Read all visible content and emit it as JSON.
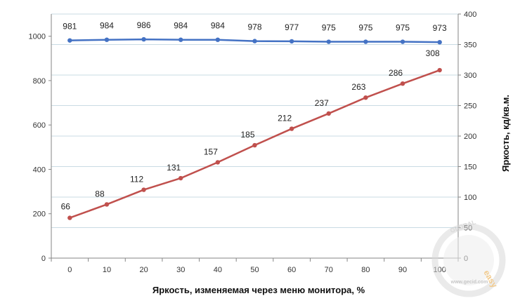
{
  "chart_data": {
    "type": "line",
    "x": [
      0,
      10,
      20,
      30,
      40,
      50,
      60,
      70,
      80,
      90,
      100
    ],
    "series": [
      {
        "values": [
          981,
          984,
          986,
          984,
          984,
          978,
          977,
          975,
          975,
          975,
          973
        ],
        "axis": "left",
        "color": "#4472C4"
      },
      {
        "values": [
          66,
          88,
          112,
          131,
          157,
          185,
          212,
          237,
          263,
          286,
          308
        ],
        "axis": "right",
        "color": "#C0504D"
      }
    ],
    "xlabel": "Яркость, изменяемая через меню монитора, %",
    "ylabel": "",
    "y2label": "Яркость, кд/кв.м.",
    "ylim": [
      0,
      1100
    ],
    "y2lim": [
      0,
      400
    ],
    "yticks": [
      0,
      200,
      400,
      600,
      800,
      1000
    ],
    "y2ticks": [
      0,
      50,
      100,
      150,
      200,
      250,
      300,
      350,
      400
    ],
    "grid": true,
    "legend": "none"
  },
  "watermark": {
    "global": "GLOBAL",
    "easy": "easy",
    "url": "www.gecid.com"
  }
}
